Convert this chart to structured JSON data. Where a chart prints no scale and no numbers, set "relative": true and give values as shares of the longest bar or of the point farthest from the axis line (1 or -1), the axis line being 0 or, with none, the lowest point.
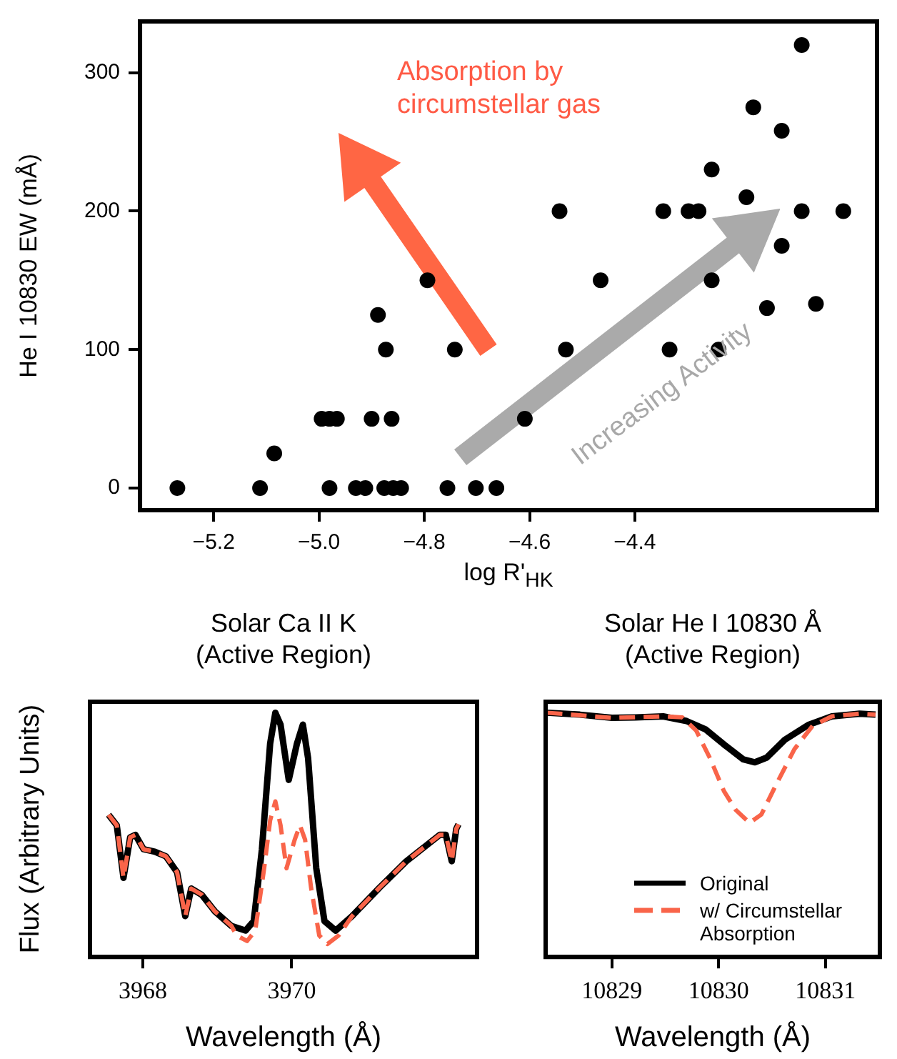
{
  "chart_data": [
    {
      "type": "scatter",
      "xlabel": "log R'$_{HK}$",
      "ylabel": "He I 10830 EW (mÅ)",
      "color": "#000000",
      "marker": "circle",
      "x": [
        -5.269,
        -5.112,
        -4.98,
        -4.93,
        -4.912,
        -4.876,
        -4.859,
        -4.844,
        -4.756,
        -4.702,
        -4.663,
        -5.085,
        -4.995,
        -4.98,
        -4.966,
        -4.9,
        -4.862,
        -4.873,
        -4.742,
        -4.888,
        -4.794,
        -4.083,
        -4.175,
        -4.121,
        -4.254,
        -4.188,
        -4.543,
        -4.346,
        -4.298,
        -4.279,
        -4.083,
        -4.004,
        -4.121,
        -4.465,
        -4.254,
        -4.056,
        -4.149,
        -4.531,
        -4.334,
        -4.241,
        -4.609
      ],
      "values": [
        0,
        0,
        0,
        0,
        0,
        0,
        0,
        0,
        0,
        0,
        0,
        25,
        50,
        50,
        50,
        50,
        50,
        100,
        100,
        125,
        150,
        320,
        275,
        258,
        230,
        210,
        200,
        200,
        200,
        200,
        200,
        200,
        175,
        150,
        150,
        133,
        130,
        100,
        100,
        100,
        50
      ],
      "xlim": [
        -5.34,
        -3.94
      ],
      "ylim": [
        -16,
        337
      ],
      "xticks": [
        {
          "value": -5.2,
          "label": "−5.2"
        },
        {
          "value": -5.0,
          "label": "−5.0"
        },
        {
          "value": -4.8,
          "label": "−4.8"
        },
        {
          "value": -4.6,
          "label": "−4.6"
        },
        {
          "value": -4.4,
          "label": "−4.4"
        }
      ],
      "yticks": [
        0,
        100,
        200,
        300
      ],
      "annotations": [
        "Absorption by circumstellar gas",
        "Increasing Activity"
      ]
    },
    {
      "type": "line",
      "title": "Solar Ca II K\n(Active Region)",
      "xlabel": "Wavelength (Å)",
      "ylabel": "Flux (Arbitrary Units)",
      "relative": true,
      "marker": "none",
      "xlim": [
        3967.29,
        3972.49
      ],
      "xticks": [
        3968,
        3970
      ],
      "series": [
        {
          "color": "#000000",
          "line_style": "solid",
          "x": [
            3967.54,
            3967.65,
            3967.74,
            3967.83,
            3967.9,
            3968.01,
            3968.16,
            3968.31,
            3968.46,
            3968.57,
            3968.65,
            3968.79,
            3968.97,
            3969.19,
            3969.38,
            3969.49,
            3969.6,
            3969.71,
            3969.78,
            3969.85,
            3969.96,
            3970.07,
            3970.15,
            3970.22,
            3970.33,
            3970.44,
            3970.59,
            3970.81,
            3971.18,
            3971.54,
            3971.99,
            3972.07,
            3972.15,
            3972.21,
            3972.24
          ],
          "values": [
            0.582,
            0.539,
            0.324,
            0.49,
            0.5,
            0.441,
            0.431,
            0.412,
            0.347,
            0.167,
            0.28,
            0.255,
            0.186,
            0.127,
            0.108,
            0.147,
            0.441,
            0.873,
            1.0,
            0.951,
            0.725,
            0.873,
            0.951,
            0.814,
            0.363,
            0.147,
            0.108,
            0.167,
            0.284,
            0.392,
            0.5,
            0.5,
            0.392,
            0.524,
            0.543
          ]
        },
        {
          "color": "#f96449",
          "line_style": "dashed",
          "x": [
            3967.54,
            3967.65,
            3967.74,
            3967.83,
            3967.9,
            3968.01,
            3968.16,
            3968.31,
            3968.46,
            3968.57,
            3968.65,
            3968.79,
            3968.97,
            3969.19,
            3969.26,
            3969.4,
            3969.51,
            3969.63,
            3969.71,
            3969.78,
            3969.85,
            3969.93,
            3970.04,
            3970.11,
            3970.18,
            3970.26,
            3970.37,
            3970.48,
            3970.63,
            3970.81,
            3971.18,
            3971.54,
            3971.99,
            3972.07,
            3972.15,
            3972.21,
            3972.24
          ],
          "values": [
            0.582,
            0.539,
            0.324,
            0.49,
            0.5,
            0.441,
            0.431,
            0.412,
            0.347,
            0.167,
            0.28,
            0.255,
            0.186,
            0.127,
            0.088,
            0.065,
            0.108,
            0.363,
            0.559,
            0.637,
            0.539,
            0.363,
            0.48,
            0.539,
            0.48,
            0.284,
            0.088,
            0.053,
            0.088,
            0.167,
            0.284,
            0.392,
            0.5,
            0.5,
            0.392,
            0.524,
            0.543
          ]
        }
      ]
    },
    {
      "type": "line",
      "title": "Solar He I 10830 Å\n(Active Region)",
      "xlabel": "Wavelength (Å)",
      "relative": true,
      "marker": "none",
      "legend": "bottom right",
      "xlim": [
        10828.38,
        10831.51
      ],
      "xticks": [
        10829,
        10830,
        10831
      ],
      "series": [
        {
          "name": "Original",
          "color": "#000000",
          "line_style": "solid",
          "x": [
            10828.39,
            10828.7,
            10829.0,
            10829.22,
            10829.48,
            10829.7,
            10829.88,
            10830.05,
            10830.23,
            10830.34,
            10830.45,
            10830.62,
            10830.84,
            10831.06,
            10831.32,
            10831.47
          ],
          "values": [
            1.0,
            0.992,
            0.979,
            0.981,
            0.985,
            0.966,
            0.931,
            0.87,
            0.809,
            0.797,
            0.816,
            0.889,
            0.95,
            0.985,
            0.996,
            0.992
          ]
        },
        {
          "name": "w/ Circumstellar Absorption",
          "color": "#f96449",
          "line_style": "dashed",
          "x": [
            10828.39,
            10829.0,
            10829.48,
            10829.66,
            10829.79,
            10829.92,
            10830.05,
            10830.16,
            10830.29,
            10830.4,
            10830.53,
            10830.71,
            10830.88,
            10831.06,
            10831.32,
            10831.47
          ],
          "values": [
            1.0,
            0.979,
            0.985,
            0.981,
            0.927,
            0.813,
            0.679,
            0.602,
            0.549,
            0.583,
            0.698,
            0.851,
            0.946,
            0.985,
            0.996,
            0.992
          ]
        }
      ]
    }
  ]
}
